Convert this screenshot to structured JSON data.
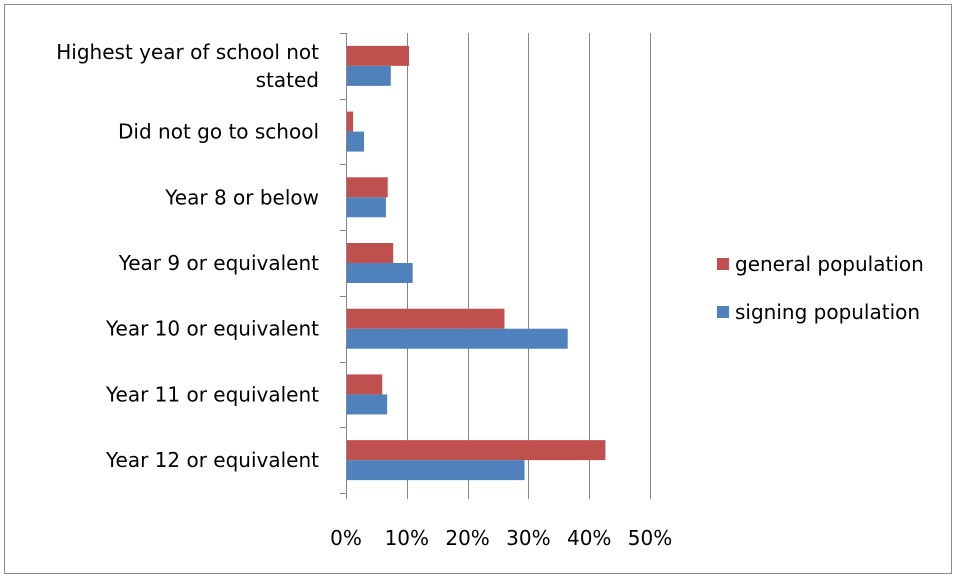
{
  "chart_data": {
    "type": "bar",
    "orientation": "horizontal",
    "title": "",
    "xlabel": "",
    "ylabel": "",
    "categories": [
      "Highest year of school not stated",
      "Did not go to school",
      "Year 8 or below",
      "Year 9 or equivalent",
      "Year 10 or equivalent",
      "Year 11 or equivalent",
      "Year 12 or equivalent"
    ],
    "series": [
      {
        "name": "general population",
        "color": "#c0504d",
        "values": [
          10.2,
          1.0,
          6.7,
          7.6,
          25.9,
          5.8,
          42.5
        ]
      },
      {
        "name": "signing population",
        "color": "#4f81bd",
        "values": [
          7.2,
          2.8,
          6.4,
          10.8,
          36.3,
          6.6,
          29.2
        ]
      }
    ],
    "xlim": [
      0,
      50
    ],
    "x_ticks": [
      "0%",
      "10%",
      "20%",
      "30%",
      "40%",
      "50%"
    ],
    "grid": true,
    "legend_position": "right"
  }
}
